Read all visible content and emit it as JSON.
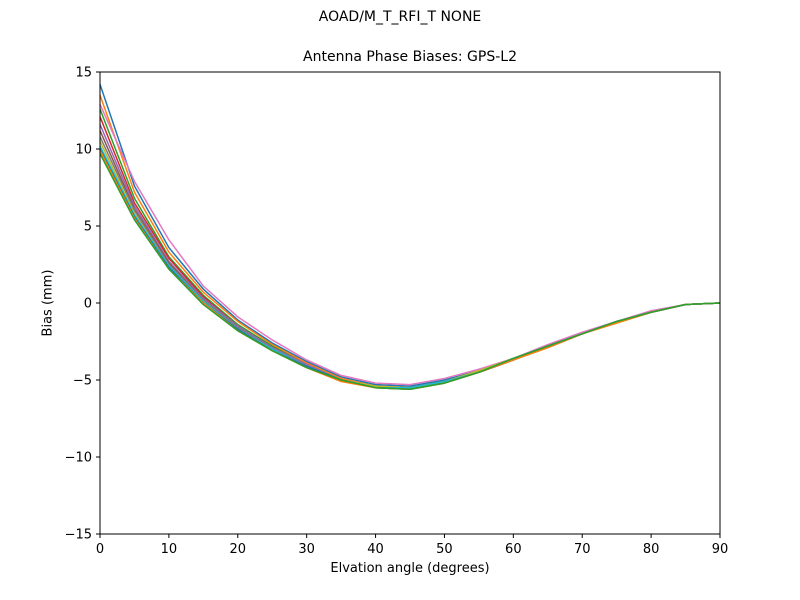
{
  "figure": {
    "suptitle": "AOAD/M_T_RFI_T  NONE"
  },
  "chart_data": {
    "type": "line",
    "title": "Antenna Phase Biases: GPS-L2",
    "xlabel": "Elvation angle (degrees)",
    "ylabel": "Bias (mm)",
    "xlim": [
      0,
      90
    ],
    "ylim": [
      -15,
      15
    ],
    "grid": false,
    "x_ticks": [
      "0",
      "10",
      "20",
      "30",
      "40",
      "50",
      "60",
      "70",
      "80",
      "90"
    ],
    "y_ticks": [
      "−15",
      "−10",
      "−5",
      "0",
      "5",
      "10",
      "15"
    ],
    "x": [
      0,
      5,
      10,
      15,
      20,
      25,
      30,
      35,
      40,
      45,
      50,
      55,
      60,
      65,
      70,
      75,
      80,
      85,
      90
    ],
    "series": [
      {
        "color": "#1f77b4",
        "values": [
          14.2,
          7.6,
          3.6,
          0.9,
          -1.1,
          -2.6,
          -3.8,
          -4.8,
          -5.3,
          -5.4,
          -5.0,
          -4.4,
          -3.6,
          -2.8,
          -2.0,
          -1.2,
          -0.6,
          -0.1,
          0.0
        ]
      },
      {
        "color": "#ff7f0e",
        "values": [
          13.5,
          7.2,
          3.3,
          0.7,
          -1.2,
          -2.7,
          -3.9,
          -4.9,
          -5.4,
          -5.5,
          -5.1,
          -4.5,
          -3.7,
          -2.8,
          -2.0,
          -1.2,
          -0.6,
          -0.1,
          0.0
        ]
      },
      {
        "color": "#2ca02c",
        "values": [
          12.6,
          6.8,
          3.0,
          0.5,
          -1.4,
          -2.8,
          -4.0,
          -5.0,
          -5.5,
          -5.6,
          -5.2,
          -4.5,
          -3.7,
          -2.9,
          -2.0,
          -1.3,
          -0.6,
          -0.1,
          0.0
        ]
      },
      {
        "color": "#d62728",
        "values": [
          12.1,
          6.5,
          2.9,
          0.4,
          -1.5,
          -2.9,
          -4.0,
          -5.0,
          -5.5,
          -5.5,
          -5.1,
          -4.5,
          -3.7,
          -2.8,
          -2.0,
          -1.2,
          -0.6,
          -0.1,
          0.0
        ]
      },
      {
        "color": "#9467bd",
        "values": [
          11.6,
          6.3,
          2.7,
          0.3,
          -1.5,
          -2.9,
          -4.0,
          -5.0,
          -5.4,
          -5.5,
          -5.1,
          -4.4,
          -3.6,
          -2.8,
          -2.0,
          -1.2,
          -0.6,
          -0.1,
          0.0
        ]
      },
      {
        "color": "#8c564b",
        "values": [
          11.2,
          6.1,
          2.6,
          0.2,
          -1.6,
          -3.0,
          -4.1,
          -5.0,
          -5.5,
          -5.5,
          -5.1,
          -4.5,
          -3.7,
          -2.8,
          -2.0,
          -1.2,
          -0.6,
          -0.1,
          0.0
        ]
      },
      {
        "color": "#e377c2",
        "values": [
          12.9,
          7.9,
          4.1,
          1.1,
          -0.9,
          -2.4,
          -3.7,
          -4.7,
          -5.2,
          -5.3,
          -4.9,
          -4.3,
          -3.6,
          -2.7,
          -1.9,
          -1.2,
          -0.5,
          -0.1,
          0.0
        ]
      },
      {
        "color": "#7f7f7f",
        "values": [
          10.8,
          6.0,
          2.5,
          0.2,
          -1.6,
          -3.0,
          -4.1,
          -5.0,
          -5.5,
          -5.5,
          -5.1,
          -4.5,
          -3.6,
          -2.8,
          -2.0,
          -1.2,
          -0.6,
          -0.1,
          0.0
        ]
      },
      {
        "color": "#bcbd22",
        "values": [
          10.5,
          5.8,
          2.4,
          0.1,
          -1.7,
          -3.0,
          -4.1,
          -5.0,
          -5.4,
          -5.5,
          -5.1,
          -4.4,
          -3.6,
          -2.8,
          -2.0,
          -1.2,
          -0.6,
          -0.1,
          0.0
        ]
      },
      {
        "color": "#17becf",
        "values": [
          10.2,
          5.7,
          2.4,
          0.1,
          -1.7,
          -3.0,
          -4.1,
          -5.0,
          -5.5,
          -5.5,
          -5.1,
          -4.5,
          -3.6,
          -2.8,
          -2.0,
          -1.2,
          -0.6,
          -0.1,
          0.0
        ]
      },
      {
        "color": "#1f77b4",
        "values": [
          10.0,
          5.6,
          2.3,
          0.0,
          -1.7,
          -3.1,
          -4.1,
          -5.0,
          -5.5,
          -5.6,
          -5.2,
          -4.5,
          -3.7,
          -2.8,
          -2.0,
          -1.2,
          -0.6,
          -0.1,
          0.0
        ]
      },
      {
        "color": "#ff7f0e",
        "values": [
          9.9,
          5.5,
          2.2,
          0.0,
          -1.8,
          -3.1,
          -4.2,
          -5.1,
          -5.5,
          -5.6,
          -5.2,
          -4.5,
          -3.7,
          -2.9,
          -2.0,
          -1.3,
          -0.6,
          -0.1,
          0.0
        ]
      },
      {
        "color": "#2ca02c",
        "values": [
          9.7,
          5.4,
          2.2,
          -0.1,
          -1.8,
          -3.1,
          -4.2,
          -5.0,
          -5.5,
          -5.6,
          -5.2,
          -4.5,
          -3.6,
          -2.8,
          -2.0,
          -1.2,
          -0.6,
          -0.1,
          0.0
        ]
      }
    ]
  }
}
